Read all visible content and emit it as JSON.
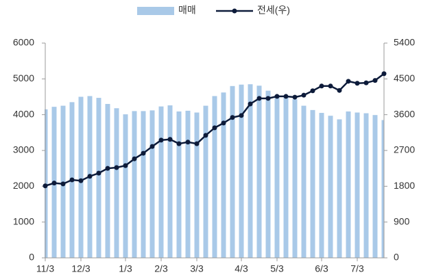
{
  "chart_data": {
    "type": "bar_line",
    "categories": [
      "11/3",
      null,
      null,
      null,
      "12/3",
      null,
      null,
      null,
      null,
      "1/3",
      null,
      null,
      null,
      "2/3",
      null,
      null,
      null,
      "3/3",
      null,
      null,
      null,
      null,
      "4/3",
      null,
      null,
      null,
      "5/3",
      null,
      null,
      null,
      null,
      "6/3",
      null,
      null,
      null,
      "7/3",
      null,
      null,
      null
    ],
    "series": [
      {
        "name": "매매",
        "type": "bar",
        "color": "#a9c9e8",
        "values": [
          4150,
          4220,
          4250,
          4350,
          4500,
          4520,
          4470,
          4300,
          4180,
          4010,
          4100,
          4100,
          4120,
          4230,
          4260,
          4090,
          4110,
          4060,
          4250,
          4520,
          4620,
          4800,
          4840,
          4850,
          4810,
          4670,
          4550,
          4500,
          4430,
          4250,
          4130,
          4050,
          3970,
          3870,
          4090,
          4060,
          4040,
          3990,
          3850
        ]
      },
      {
        "name": "전세(우)",
        "type": "line",
        "axis": "y2",
        "color": "#0d1b3a",
        "values": [
          1810,
          1880,
          1860,
          1960,
          1940,
          2050,
          2130,
          2250,
          2270,
          2320,
          2490,
          2630,
          2800,
          2960,
          2980,
          2870,
          2910,
          2870,
          3080,
          3270,
          3390,
          3530,
          3580,
          3870,
          4010,
          4010,
          4060,
          4060,
          4040,
          4090,
          4200,
          4320,
          4320,
          4210,
          4440,
          4390,
          4400,
          4460,
          4630
        ]
      }
    ],
    "ylim": [
      0,
      6000
    ],
    "yticks": [
      0,
      1000,
      2000,
      3000,
      4000,
      5000,
      6000
    ],
    "y2lim": [
      0,
      5400
    ],
    "y2ticks": [
      0,
      900,
      1800,
      2700,
      3600,
      4500,
      5400
    ],
    "grid": false,
    "legend": "top"
  }
}
